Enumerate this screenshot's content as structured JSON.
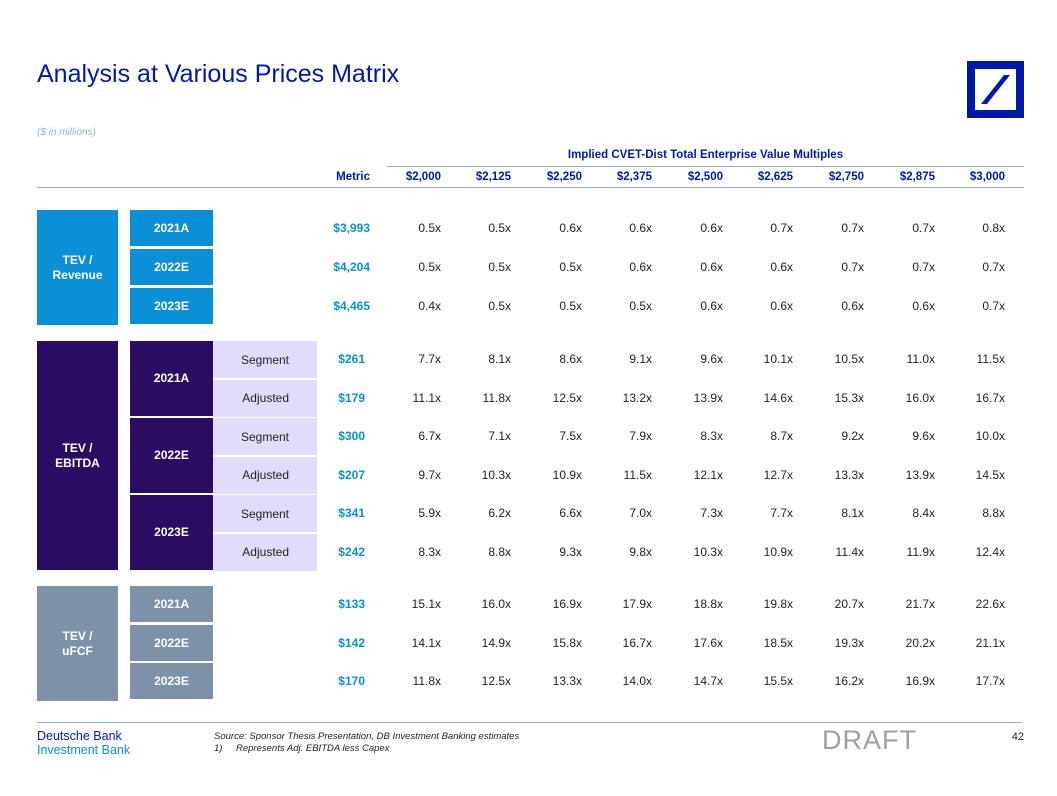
{
  "title": "Analysis at Various Prices Matrix",
  "units_note": "($ in millions)",
  "header": {
    "group_title": "Implied CVET-Dist Total Enterprise Value Multiples",
    "metric_label": "Metric",
    "prices": [
      "$2,000",
      "$2,125",
      "$2,250",
      "$2,375",
      "$2,500",
      "$2,625",
      "$2,750",
      "$2,875",
      "$3,000"
    ]
  },
  "sections": [
    {
      "label_line1": "TEV /",
      "label_line2": "Revenue",
      "rows": [
        {
          "year": "2021A",
          "metric": "$3,993",
          "values": [
            "0.5x",
            "0.5x",
            "0.6x",
            "0.6x",
            "0.6x",
            "0.7x",
            "0.7x",
            "0.7x",
            "0.8x"
          ]
        },
        {
          "year": "2022E",
          "metric": "$4,204",
          "values": [
            "0.5x",
            "0.5x",
            "0.5x",
            "0.6x",
            "0.6x",
            "0.6x",
            "0.7x",
            "0.7x",
            "0.7x"
          ]
        },
        {
          "year": "2023E",
          "metric": "$4,465",
          "values": [
            "0.4x",
            "0.5x",
            "0.5x",
            "0.5x",
            "0.6x",
            "0.6x",
            "0.6x",
            "0.6x",
            "0.7x"
          ]
        }
      ]
    },
    {
      "label_line1": "TEV /",
      "label_line2": "EBITDA",
      "years": [
        "2021A",
        "2022E",
        "2023E"
      ],
      "rows": [
        {
          "type": "Segment",
          "metric": "$261",
          "values": [
            "7.7x",
            "8.1x",
            "8.6x",
            "9.1x",
            "9.6x",
            "10.1x",
            "10.5x",
            "11.0x",
            "11.5x"
          ]
        },
        {
          "type": "Adjusted",
          "metric": "$179",
          "values": [
            "11.1x",
            "11.8x",
            "12.5x",
            "13.2x",
            "13.9x",
            "14.6x",
            "15.3x",
            "16.0x",
            "16.7x"
          ]
        },
        {
          "type": "Segment",
          "metric": "$300",
          "values": [
            "6.7x",
            "7.1x",
            "7.5x",
            "7.9x",
            "8.3x",
            "8.7x",
            "9.2x",
            "9.6x",
            "10.0x"
          ]
        },
        {
          "type": "Adjusted",
          "metric": "$207",
          "values": [
            "9.7x",
            "10.3x",
            "10.9x",
            "11.5x",
            "12.1x",
            "12.7x",
            "13.3x",
            "13.9x",
            "14.5x"
          ]
        },
        {
          "type": "Segment",
          "metric": "$341",
          "values": [
            "5.9x",
            "6.2x",
            "6.6x",
            "7.0x",
            "7.3x",
            "7.7x",
            "8.1x",
            "8.4x",
            "8.8x"
          ]
        },
        {
          "type": "Adjusted",
          "metric": "$242",
          "values": [
            "8.3x",
            "8.8x",
            "9.3x",
            "9.8x",
            "10.3x",
            "10.9x",
            "11.4x",
            "11.9x",
            "12.4x"
          ]
        }
      ]
    },
    {
      "label_line1": "TEV /",
      "label_line2": "uFCF",
      "rows": [
        {
          "year": "2021A",
          "metric": "$133",
          "values": [
            "15.1x",
            "16.0x",
            "16.9x",
            "17.9x",
            "18.8x",
            "19.8x",
            "20.7x",
            "21.7x",
            "22.6x"
          ]
        },
        {
          "year": "2022E",
          "metric": "$142",
          "values": [
            "14.1x",
            "14.9x",
            "15.8x",
            "16.7x",
            "17.6x",
            "18.5x",
            "19.3x",
            "20.2x",
            "21.1x"
          ]
        },
        {
          "year": "2023E",
          "metric": "$170",
          "values": [
            "11.8x",
            "12.5x",
            "13.3x",
            "14.0x",
            "14.7x",
            "15.5x",
            "16.2x",
            "16.9x",
            "17.7x"
          ]
        }
      ]
    }
  ],
  "footer": {
    "brand_line1": "Deutsche Bank",
    "brand_line2": "Investment Bank",
    "source": "Source: Sponsor Thesis Presentation, DB Investment Banking estimates",
    "footnote_num": "1)",
    "footnote_text": "Represents Adj. EBITDA less Capex",
    "draft": "DRAFT",
    "page": "42"
  },
  "colors": {
    "brand_blue": "#0018a8",
    "revenue": "#0b8fd6",
    "ebitda": "#2a0d63",
    "ufcf": "#7d92a8",
    "segment_bg": "#e3dbfa"
  }
}
